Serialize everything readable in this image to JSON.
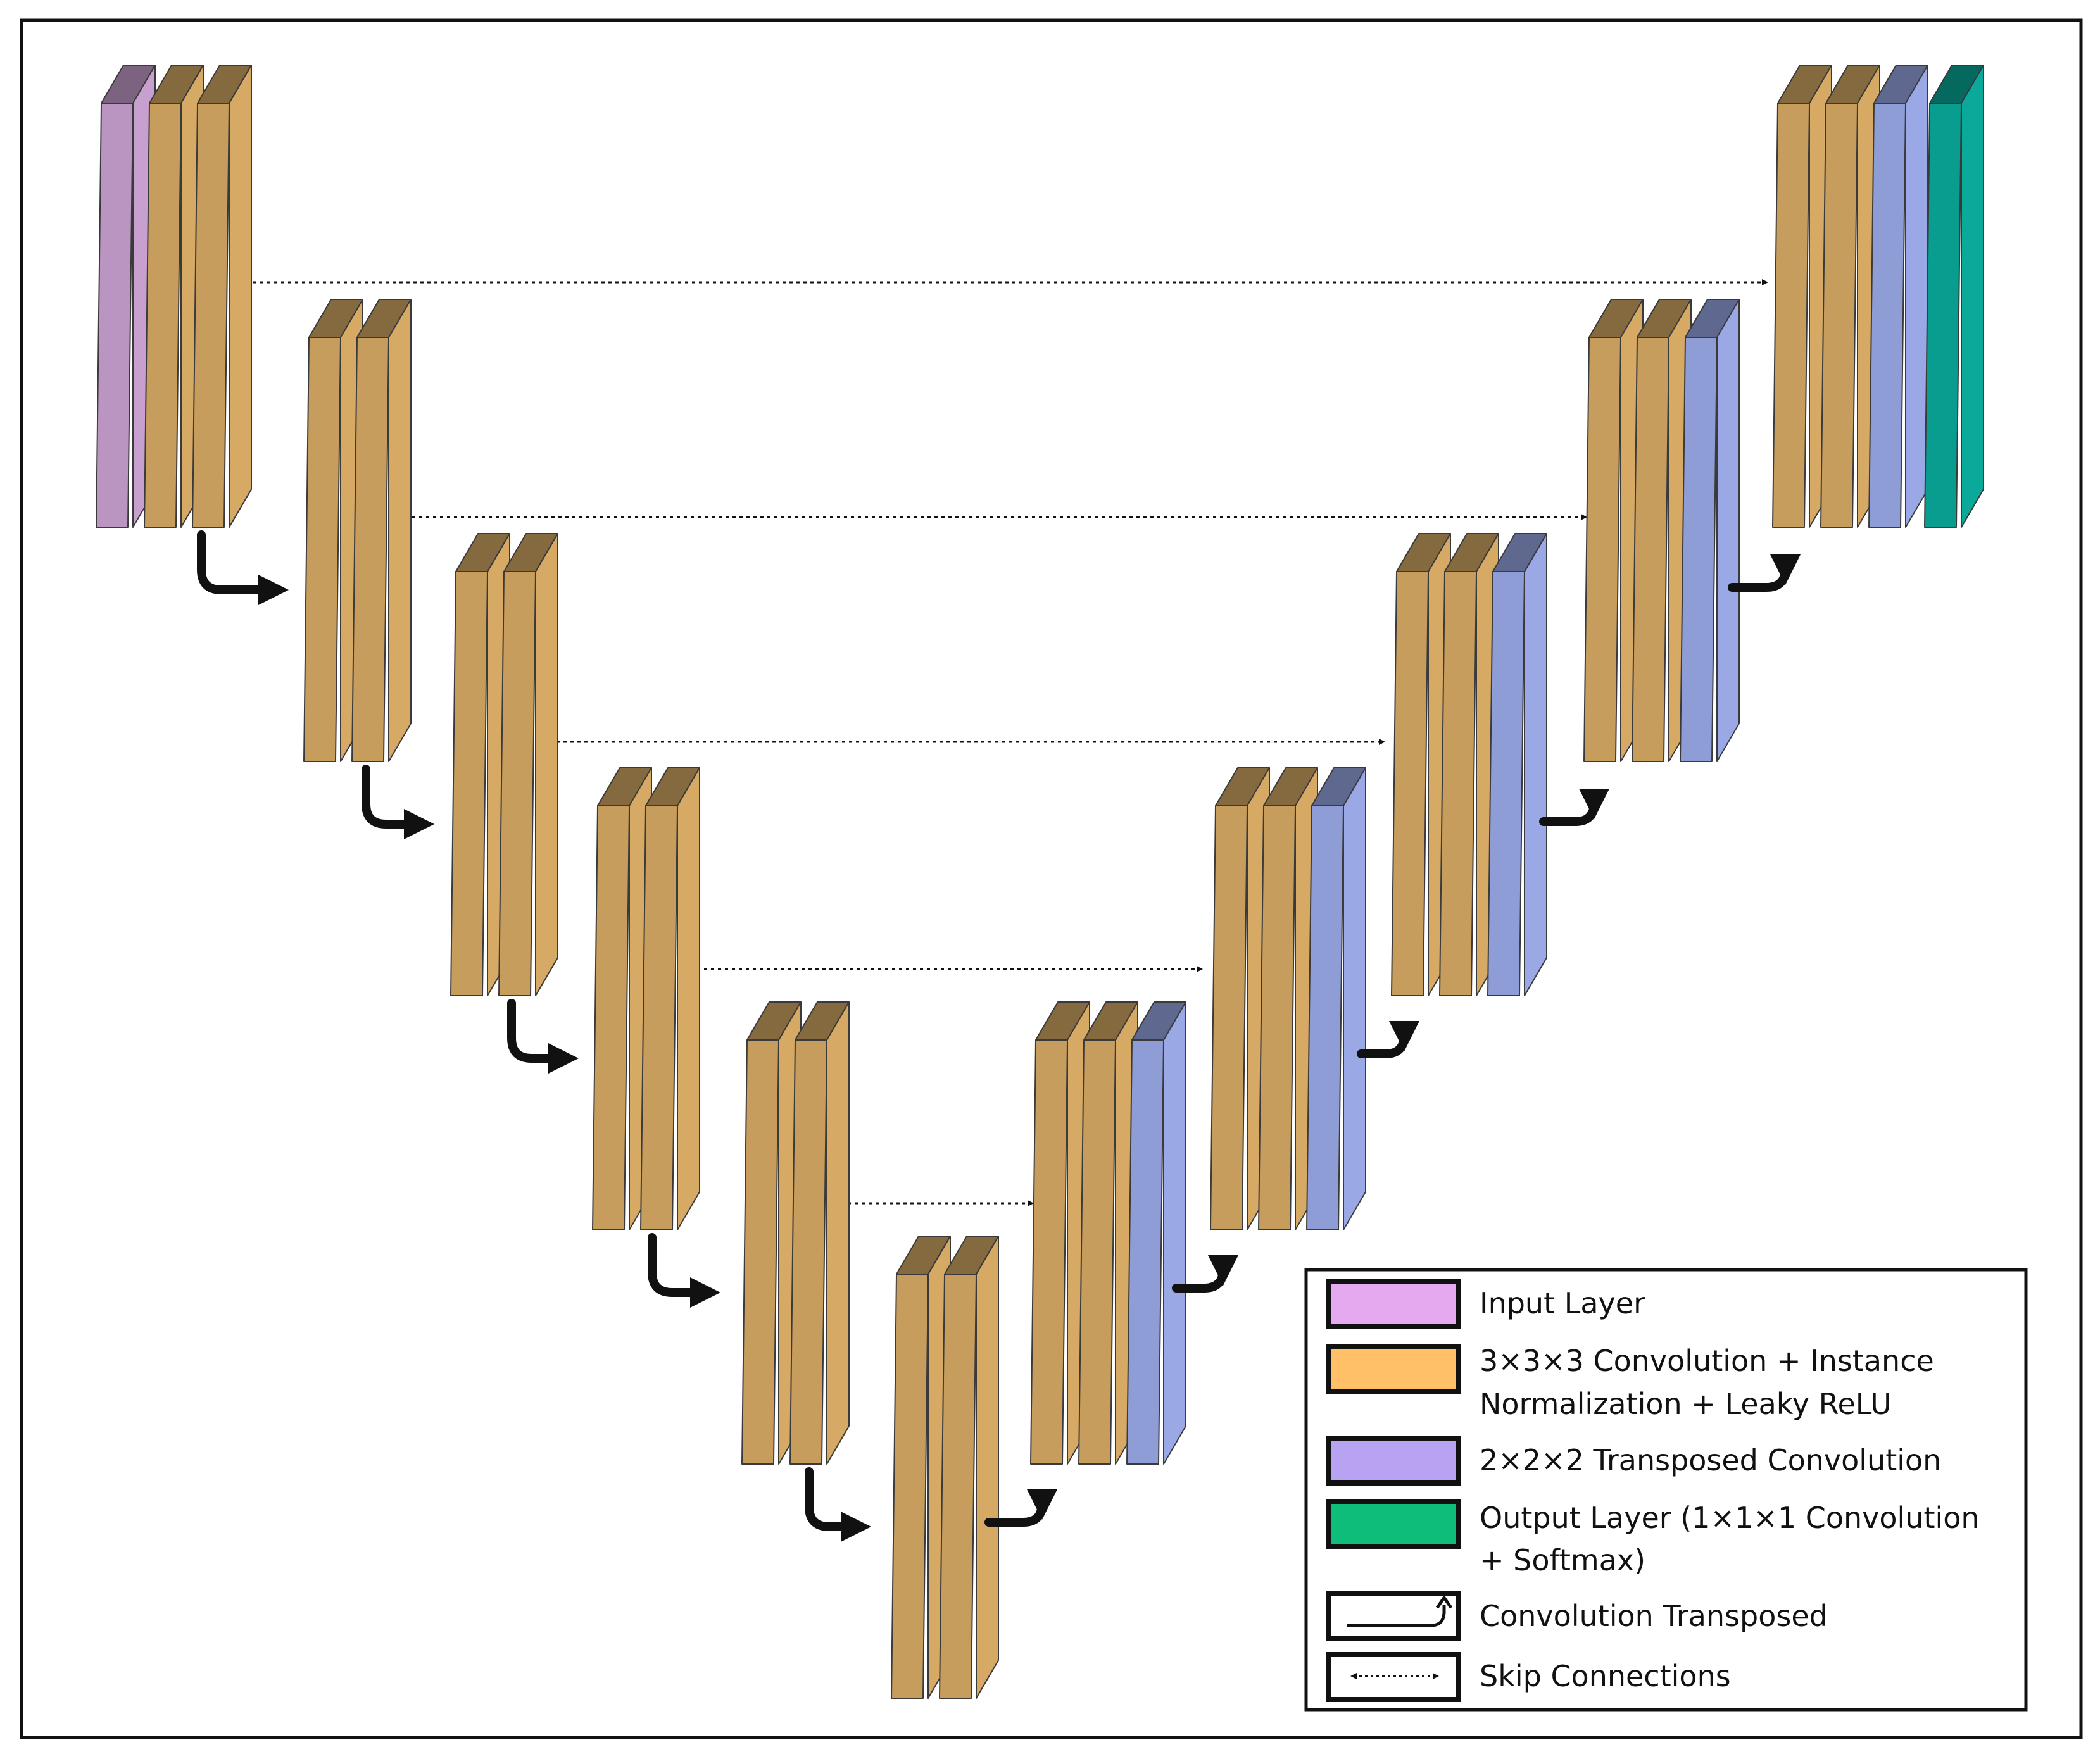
{
  "colors": {
    "input": "#c8a0cf",
    "conv": "#d6a965",
    "transposed": "#9aa9e6",
    "output": "#0aa99a",
    "legend_input": "#e4a9ef",
    "legend_conv": "#ffc067",
    "legend_transposed": "#b7a3f2",
    "legend_output": "#0fbd7a"
  },
  "legend": {
    "input": "Input Layer",
    "conv_line1": "3×3×3 Convolution + Instance",
    "conv_line2": "Normalization + Leaky ReLU",
    "transposed": "2×2×2 Transposed Convolution",
    "output_line1": "Output Layer (1×1×1 Convolution",
    "output_line2": "+ Softmax)",
    "conv_transposed": "Convolution Transposed",
    "skip": "Skip Connections"
  },
  "architecture": {
    "encoder_levels": 6,
    "decoder_levels": 5,
    "skip_connections": 5
  }
}
